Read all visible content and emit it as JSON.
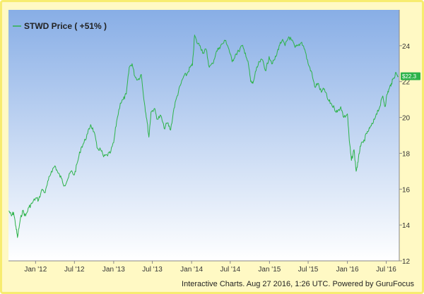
{
  "chart_data": {
    "type": "line",
    "series": [
      {
        "name": "STWD Price ( +51% )",
        "color": "#2db34a",
        "points": [
          [
            "2011-08-29",
            14.8
          ],
          [
            "2011-09-10",
            14.5
          ],
          [
            "2011-09-20",
            14.7
          ],
          [
            "2011-10-01",
            13.9
          ],
          [
            "2011-10-08",
            13.3
          ],
          [
            "2011-10-20",
            14.2
          ],
          [
            "2011-11-01",
            14.8
          ],
          [
            "2011-11-15",
            14.5
          ],
          [
            "2011-12-01",
            15.0
          ],
          [
            "2011-12-15",
            15.2
          ],
          [
            "2012-01-01",
            15.5
          ],
          [
            "2012-01-15",
            15.4
          ],
          [
            "2012-02-01",
            16.0
          ],
          [
            "2012-02-15",
            15.8
          ],
          [
            "2012-03-01",
            16.5
          ],
          [
            "2012-03-15",
            17.0
          ],
          [
            "2012-04-01",
            17.3
          ],
          [
            "2012-04-15",
            16.9
          ],
          [
            "2012-05-01",
            16.6
          ],
          [
            "2012-05-15",
            16.2
          ],
          [
            "2012-06-01",
            16.6
          ],
          [
            "2012-06-15",
            17.0
          ],
          [
            "2012-07-01",
            16.8
          ],
          [
            "2012-07-15",
            17.5
          ],
          [
            "2012-08-01",
            18.3
          ],
          [
            "2012-08-15",
            18.6
          ],
          [
            "2012-09-01",
            19.1
          ],
          [
            "2012-09-15",
            19.6
          ],
          [
            "2012-10-01",
            19.2
          ],
          [
            "2012-10-15",
            18.3
          ],
          [
            "2012-11-01",
            18.2
          ],
          [
            "2012-11-15",
            17.8
          ],
          [
            "2012-12-01",
            17.9
          ],
          [
            "2012-12-15",
            18.0
          ],
          [
            "2013-01-01",
            18.6
          ],
          [
            "2013-01-15",
            19.8
          ],
          [
            "2013-02-01",
            20.8
          ],
          [
            "2013-02-15",
            21.0
          ],
          [
            "2013-03-01",
            21.3
          ],
          [
            "2013-03-15",
            22.8
          ],
          [
            "2013-03-28",
            23.0
          ],
          [
            "2013-04-10",
            22.3
          ],
          [
            "2013-04-25",
            22.1
          ],
          [
            "2013-05-10",
            22.4
          ],
          [
            "2013-05-25",
            20.8
          ],
          [
            "2013-06-05",
            19.9
          ],
          [
            "2013-06-15",
            18.9
          ],
          [
            "2013-06-25",
            20.3
          ],
          [
            "2013-07-10",
            20.5
          ],
          [
            "2013-07-25",
            19.9
          ],
          [
            "2013-08-10",
            20.1
          ],
          [
            "2013-08-25",
            19.4
          ],
          [
            "2013-09-10",
            19.7
          ],
          [
            "2013-09-25",
            19.3
          ],
          [
            "2013-10-10",
            20.5
          ],
          [
            "2013-10-25",
            21.2
          ],
          [
            "2013-11-10",
            21.8
          ],
          [
            "2013-11-25",
            22.3
          ],
          [
            "2013-12-10",
            22.4
          ],
          [
            "2013-12-25",
            22.8
          ],
          [
            "2014-01-05",
            22.9
          ],
          [
            "2014-01-15",
            24.6
          ],
          [
            "2014-01-25",
            24.2
          ],
          [
            "2014-02-10",
            24.0
          ],
          [
            "2014-02-25",
            23.6
          ],
          [
            "2014-03-10",
            23.8
          ],
          [
            "2014-03-25",
            22.8
          ],
          [
            "2014-04-10",
            23.0
          ],
          [
            "2014-04-25",
            23.6
          ],
          [
            "2014-05-10",
            23.9
          ],
          [
            "2014-05-25",
            24.1
          ],
          [
            "2014-06-10",
            24.3
          ],
          [
            "2014-06-25",
            23.8
          ],
          [
            "2014-07-10",
            23.1
          ],
          [
            "2014-07-25",
            23.5
          ],
          [
            "2014-08-10",
            23.7
          ],
          [
            "2014-08-25",
            24.0
          ],
          [
            "2014-09-10",
            23.6
          ],
          [
            "2014-09-25",
            22.9
          ],
          [
            "2014-10-05",
            22.0
          ],
          [
            "2014-10-15",
            21.9
          ],
          [
            "2014-10-30",
            22.6
          ],
          [
            "2014-11-15",
            23.1
          ],
          [
            "2014-11-30",
            23.2
          ],
          [
            "2014-12-15",
            22.6
          ],
          [
            "2014-12-30",
            23.4
          ],
          [
            "2015-01-15",
            23.0
          ],
          [
            "2015-02-01",
            23.4
          ],
          [
            "2015-02-15",
            24.0
          ],
          [
            "2015-03-01",
            24.3
          ],
          [
            "2015-03-15",
            24.0
          ],
          [
            "2015-04-01",
            24.5
          ],
          [
            "2015-04-15",
            24.3
          ],
          [
            "2015-05-01",
            23.9
          ],
          [
            "2015-05-15",
            24.0
          ],
          [
            "2015-06-01",
            24.2
          ],
          [
            "2015-06-15",
            23.8
          ],
          [
            "2015-07-01",
            23.0
          ],
          [
            "2015-07-15",
            22.6
          ],
          [
            "2015-08-01",
            21.7
          ],
          [
            "2015-08-15",
            21.9
          ],
          [
            "2015-09-01",
            21.4
          ],
          [
            "2015-09-15",
            21.6
          ],
          [
            "2015-10-01",
            21.0
          ],
          [
            "2015-10-15",
            20.8
          ],
          [
            "2015-11-01",
            20.5
          ],
          [
            "2015-11-15",
            20.3
          ],
          [
            "2015-12-01",
            20.6
          ],
          [
            "2015-12-15",
            20.0
          ],
          [
            "2016-01-01",
            20.2
          ],
          [
            "2016-01-10",
            18.7
          ],
          [
            "2016-01-20",
            17.6
          ],
          [
            "2016-02-01",
            18.2
          ],
          [
            "2016-02-11",
            17.0
          ],
          [
            "2016-02-20",
            17.5
          ],
          [
            "2016-03-01",
            18.4
          ],
          [
            "2016-03-15",
            18.6
          ],
          [
            "2016-04-01",
            19.1
          ],
          [
            "2016-04-15",
            19.4
          ],
          [
            "2016-05-01",
            19.7
          ],
          [
            "2016-05-15",
            20.2
          ],
          [
            "2016-06-01",
            20.6
          ],
          [
            "2016-06-15",
            21.2
          ],
          [
            "2016-06-25",
            20.6
          ],
          [
            "2016-07-05",
            21.3
          ],
          [
            "2016-07-15",
            21.6
          ],
          [
            "2016-07-25",
            21.9
          ],
          [
            "2016-08-05",
            22.2
          ],
          [
            "2016-08-15",
            22.5
          ],
          [
            "2016-08-26",
            22.3
          ]
        ]
      }
    ],
    "x_ticks": [
      {
        "date": "2012-01-01",
        "label": "Jan '12"
      },
      {
        "date": "2012-07-01",
        "label": "Jul '12"
      },
      {
        "date": "2013-01-01",
        "label": "Jan '13"
      },
      {
        "date": "2013-07-01",
        "label": "Jul '13"
      },
      {
        "date": "2014-01-01",
        "label": "Jan '14"
      },
      {
        "date": "2014-07-01",
        "label": "Jul '14"
      },
      {
        "date": "2015-01-01",
        "label": "Jan '15"
      },
      {
        "date": "2015-07-01",
        "label": "Jul '15"
      },
      {
        "date": "2016-01-01",
        "label": "Jan '16"
      },
      {
        "date": "2016-07-01",
        "label": "Jul '16"
      }
    ],
    "y_ticks": [
      12,
      14,
      16,
      18,
      20,
      22,
      24
    ],
    "xlim": [
      "2011-08-27",
      "2016-08-31"
    ],
    "ylim": [
      12,
      26
    ],
    "y_axis_side": "right",
    "last_value_label": "$22.3",
    "legend": {
      "placement": "top-left",
      "text": "STWD Price ( +51% )"
    },
    "plot_background": {
      "top": "#88aee6",
      "bottom": "#ffffff"
    },
    "frame_color": "#fff9c4",
    "grid": false
  },
  "footer": {
    "credit": "Interactive Charts. Aug 27 2016, 1:26 UTC. Powered by GuruFocus"
  }
}
